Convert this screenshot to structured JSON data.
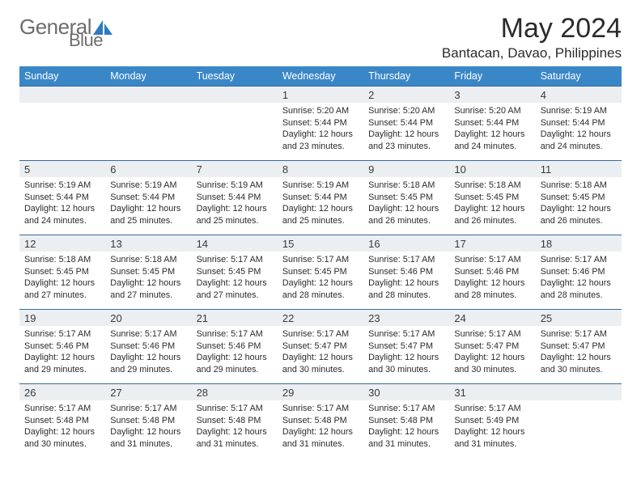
{
  "brand": {
    "word1": "General",
    "word2": "Blue",
    "shape_color": "#2f7bbf"
  },
  "header": {
    "month_title": "May 2024",
    "location": "Bantacan, Davao, Philippines"
  },
  "colors": {
    "header_bg": "#3a87c7",
    "row_border": "#3a6a95",
    "daynum_bg": "#eceff1",
    "text": "#2b2b2b"
  },
  "weekdays": [
    "Sunday",
    "Monday",
    "Tuesday",
    "Wednesday",
    "Thursday",
    "Friday",
    "Saturday"
  ],
  "first_weekday_index": 3,
  "days_in_month": 31,
  "labels": {
    "sunrise": "Sunrise: ",
    "sunset": "Sunset: ",
    "daylight_prefix": "Daylight: ",
    "daylight_mid": " hours and ",
    "daylight_suffix": " minutes."
  },
  "days": [
    {
      "n": 1,
      "sunrise": "5:20 AM",
      "sunset": "5:44 PM",
      "dh": 12,
      "dm": 23
    },
    {
      "n": 2,
      "sunrise": "5:20 AM",
      "sunset": "5:44 PM",
      "dh": 12,
      "dm": 23
    },
    {
      "n": 3,
      "sunrise": "5:20 AM",
      "sunset": "5:44 PM",
      "dh": 12,
      "dm": 24
    },
    {
      "n": 4,
      "sunrise": "5:19 AM",
      "sunset": "5:44 PM",
      "dh": 12,
      "dm": 24
    },
    {
      "n": 5,
      "sunrise": "5:19 AM",
      "sunset": "5:44 PM",
      "dh": 12,
      "dm": 24
    },
    {
      "n": 6,
      "sunrise": "5:19 AM",
      "sunset": "5:44 PM",
      "dh": 12,
      "dm": 25
    },
    {
      "n": 7,
      "sunrise": "5:19 AM",
      "sunset": "5:44 PM",
      "dh": 12,
      "dm": 25
    },
    {
      "n": 8,
      "sunrise": "5:19 AM",
      "sunset": "5:44 PM",
      "dh": 12,
      "dm": 25
    },
    {
      "n": 9,
      "sunrise": "5:18 AM",
      "sunset": "5:45 PM",
      "dh": 12,
      "dm": 26
    },
    {
      "n": 10,
      "sunrise": "5:18 AM",
      "sunset": "5:45 PM",
      "dh": 12,
      "dm": 26
    },
    {
      "n": 11,
      "sunrise": "5:18 AM",
      "sunset": "5:45 PM",
      "dh": 12,
      "dm": 26
    },
    {
      "n": 12,
      "sunrise": "5:18 AM",
      "sunset": "5:45 PM",
      "dh": 12,
      "dm": 27
    },
    {
      "n": 13,
      "sunrise": "5:18 AM",
      "sunset": "5:45 PM",
      "dh": 12,
      "dm": 27
    },
    {
      "n": 14,
      "sunrise": "5:17 AM",
      "sunset": "5:45 PM",
      "dh": 12,
      "dm": 27
    },
    {
      "n": 15,
      "sunrise": "5:17 AM",
      "sunset": "5:45 PM",
      "dh": 12,
      "dm": 28
    },
    {
      "n": 16,
      "sunrise": "5:17 AM",
      "sunset": "5:46 PM",
      "dh": 12,
      "dm": 28
    },
    {
      "n": 17,
      "sunrise": "5:17 AM",
      "sunset": "5:46 PM",
      "dh": 12,
      "dm": 28
    },
    {
      "n": 18,
      "sunrise": "5:17 AM",
      "sunset": "5:46 PM",
      "dh": 12,
      "dm": 28
    },
    {
      "n": 19,
      "sunrise": "5:17 AM",
      "sunset": "5:46 PM",
      "dh": 12,
      "dm": 29
    },
    {
      "n": 20,
      "sunrise": "5:17 AM",
      "sunset": "5:46 PM",
      "dh": 12,
      "dm": 29
    },
    {
      "n": 21,
      "sunrise": "5:17 AM",
      "sunset": "5:46 PM",
      "dh": 12,
      "dm": 29
    },
    {
      "n": 22,
      "sunrise": "5:17 AM",
      "sunset": "5:47 PM",
      "dh": 12,
      "dm": 30
    },
    {
      "n": 23,
      "sunrise": "5:17 AM",
      "sunset": "5:47 PM",
      "dh": 12,
      "dm": 30
    },
    {
      "n": 24,
      "sunrise": "5:17 AM",
      "sunset": "5:47 PM",
      "dh": 12,
      "dm": 30
    },
    {
      "n": 25,
      "sunrise": "5:17 AM",
      "sunset": "5:47 PM",
      "dh": 12,
      "dm": 30
    },
    {
      "n": 26,
      "sunrise": "5:17 AM",
      "sunset": "5:48 PM",
      "dh": 12,
      "dm": 30
    },
    {
      "n": 27,
      "sunrise": "5:17 AM",
      "sunset": "5:48 PM",
      "dh": 12,
      "dm": 31
    },
    {
      "n": 28,
      "sunrise": "5:17 AM",
      "sunset": "5:48 PM",
      "dh": 12,
      "dm": 31
    },
    {
      "n": 29,
      "sunrise": "5:17 AM",
      "sunset": "5:48 PM",
      "dh": 12,
      "dm": 31
    },
    {
      "n": 30,
      "sunrise": "5:17 AM",
      "sunset": "5:48 PM",
      "dh": 12,
      "dm": 31
    },
    {
      "n": 31,
      "sunrise": "5:17 AM",
      "sunset": "5:49 PM",
      "dh": 12,
      "dm": 31
    }
  ]
}
